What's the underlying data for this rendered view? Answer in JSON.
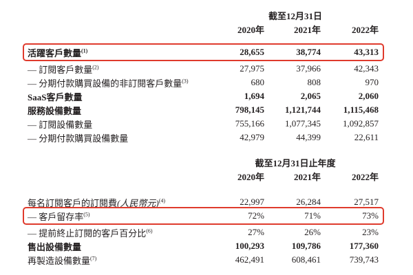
{
  "highlight_color": "#df3a2c",
  "table1": {
    "period_header": "截至12月31日",
    "years": [
      "2020年",
      "2021年",
      "2022年"
    ],
    "rows": [
      {
        "label": "活躍客戶數量",
        "sup": "(1)",
        "values": [
          "28,655",
          "38,774",
          "43,313"
        ]
      },
      {
        "label": "— 訂閱客戶數量",
        "sup": "(2)",
        "values": [
          "27,975",
          "37,966",
          "42,343"
        ]
      },
      {
        "label": "— 分期付款購買設備的非訂閱客戶數量",
        "sup": "(3)",
        "values": [
          "680",
          "808",
          "970"
        ]
      },
      {
        "label": "SaaS客戶數量",
        "sup": "",
        "values": [
          "1,694",
          "2,065",
          "2,060"
        ]
      },
      {
        "label": "服務設備數量",
        "sup": "",
        "values": [
          "798,145",
          "1,121,744",
          "1,115,468"
        ]
      },
      {
        "label": "— 訂閱設備數量",
        "sup": "",
        "values": [
          "755,166",
          "1,077,345",
          "1,092,857"
        ]
      },
      {
        "label": "— 分期付款購買設備數量",
        "sup": "",
        "values": [
          "42,979",
          "44,399",
          "22,611"
        ]
      }
    ]
  },
  "table2": {
    "period_header": "截至12月31日止年度",
    "years": [
      "2020年",
      "2021年",
      "2022年"
    ],
    "rows": [
      {
        "label": "每名訂閱客戶的訂閱費",
        "note": "(人民幣元)",
        "sup": "(4)",
        "values": [
          "22,997",
          "26,284",
          "27,517"
        ]
      },
      {
        "label": "— 客戶留存率",
        "sup": "(5)",
        "values": [
          "72%",
          "71%",
          "73%"
        ]
      },
      {
        "label": "— 提前終止訂閱的客戶百分比",
        "sup": "(6)",
        "values": [
          "27%",
          "26%",
          "23%"
        ]
      },
      {
        "label": "售出設備數量",
        "sup": "",
        "values": [
          "100,293",
          "109,786",
          "177,360"
        ]
      },
      {
        "label": "再製造設備數量",
        "sup": "(7)",
        "values": [
          "462,491",
          "608,461",
          "739,743"
        ]
      }
    ]
  }
}
